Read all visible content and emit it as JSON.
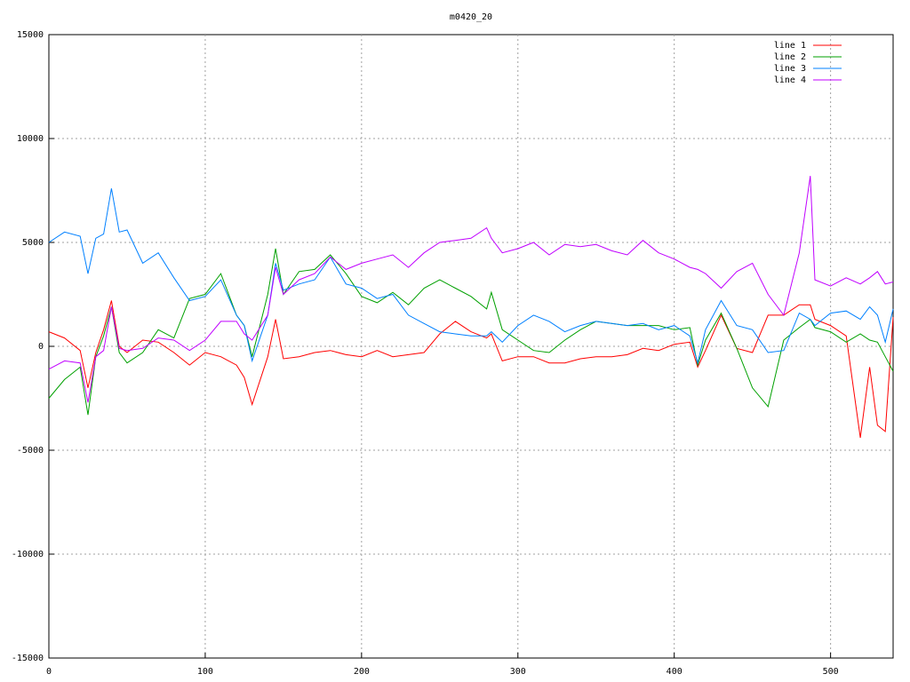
{
  "chart_data": {
    "type": "line",
    "title": "m0420_20",
    "x": [
      0,
      10,
      20,
      25,
      30,
      35,
      40,
      45,
      50,
      60,
      70,
      80,
      90,
      100,
      110,
      120,
      125,
      130,
      140,
      145,
      150,
      160,
      170,
      180,
      190,
      200,
      210,
      220,
      230,
      240,
      250,
      260,
      270,
      280,
      283,
      290,
      300,
      310,
      320,
      330,
      340,
      350,
      360,
      370,
      380,
      390,
      400,
      410,
      415,
      420,
      430,
      440,
      450,
      460,
      470,
      480,
      487,
      490,
      500,
      510,
      519,
      525,
      530,
      535,
      540
    ],
    "series": [
      {
        "name": "line 1",
        "color": "#ff0000",
        "values": [
          700,
          400,
          -200,
          -2000,
          -300,
          800,
          2200,
          0,
          -300,
          300,
          200,
          -300,
          -900,
          -300,
          -500,
          -900,
          -1500,
          -2800,
          -500,
          1300,
          -600,
          -500,
          -300,
          -200,
          -400,
          -500,
          -200,
          -500,
          -400,
          -300,
          600,
          1200,
          700,
          400,
          600,
          -700,
          -500,
          -500,
          -800,
          -800,
          -600,
          -500,
          -500,
          -400,
          -100,
          -200,
          100,
          200,
          -1000,
          -200,
          1500,
          -100,
          -300,
          1500,
          1500,
          2000,
          2000,
          1300,
          1000,
          500,
          -4400,
          -1000,
          -3800,
          -4100,
          1400
        ]
      },
      {
        "name": "line 2",
        "color": "#00a000",
        "values": [
          -2500,
          -1600,
          -1000,
          -3300,
          -500,
          500,
          1900,
          -300,
          -800,
          -300,
          800,
          400,
          2300,
          2500,
          3500,
          1500,
          1000,
          -500,
          2500,
          4700,
          2500,
          3600,
          3700,
          4400,
          3500,
          2400,
          2100,
          2600,
          2000,
          2800,
          3200,
          2800,
          2400,
          1800,
          2600,
          800,
          300,
          -200,
          -300,
          300,
          800,
          1200,
          1100,
          1000,
          1000,
          1000,
          800,
          900,
          -900,
          300,
          1600,
          -100,
          -2000,
          -2900,
          300,
          900,
          1300,
          900,
          700,
          200,
          600,
          300,
          200,
          -500,
          -1200
        ]
      },
      {
        "name": "line 3",
        "color": "#0080ff",
        "values": [
          5000,
          5500,
          5300,
          3500,
          5200,
          5400,
          7600,
          5500,
          5600,
          4000,
          4500,
          3300,
          2200,
          2400,
          3200,
          1500,
          1000,
          -700,
          1500,
          4000,
          2700,
          3000,
          3200,
          4300,
          3000,
          2800,
          2300,
          2500,
          1500,
          1100,
          700,
          600,
          500,
          500,
          700,
          200,
          1000,
          1500,
          1200,
          700,
          1000,
          1200,
          1100,
          1000,
          1100,
          800,
          1000,
          500,
          -800,
          800,
          2200,
          1000,
          800,
          -300,
          -200,
          1600,
          1300,
          1000,
          1600,
          1700,
          1300,
          1900,
          1500,
          200,
          1800
        ]
      },
      {
        "name": "line 4",
        "color": "#c000ff",
        "values": [
          -1100,
          -700,
          -800,
          -2700,
          -500,
          -200,
          1900,
          -100,
          -200,
          -100,
          400,
          300,
          -200,
          300,
          1200,
          1200,
          600,
          300,
          1500,
          3800,
          2500,
          3200,
          3500,
          4300,
          3700,
          4000,
          4200,
          4400,
          3800,
          4500,
          5000,
          5100,
          5200,
          5700,
          5200,
          4500,
          4700,
          5000,
          4400,
          4900,
          4800,
          4900,
          4600,
          4400,
          5100,
          4500,
          4200,
          3800,
          3700,
          3500,
          2800,
          3600,
          4000,
          2500,
          1500,
          4500,
          8200,
          3200,
          2900,
          3300,
          3000,
          3300,
          3600,
          3000,
          3100
        ]
      }
    ],
    "xlim": [
      0,
      540
    ],
    "xticks": [
      0,
      100,
      200,
      300,
      400,
      500
    ],
    "ylim": [
      -15000,
      15000
    ],
    "yticks": [
      -15000,
      -10000,
      -5000,
      0,
      5000,
      10000,
      15000
    ],
    "grid": true,
    "legend": "top-right"
  }
}
